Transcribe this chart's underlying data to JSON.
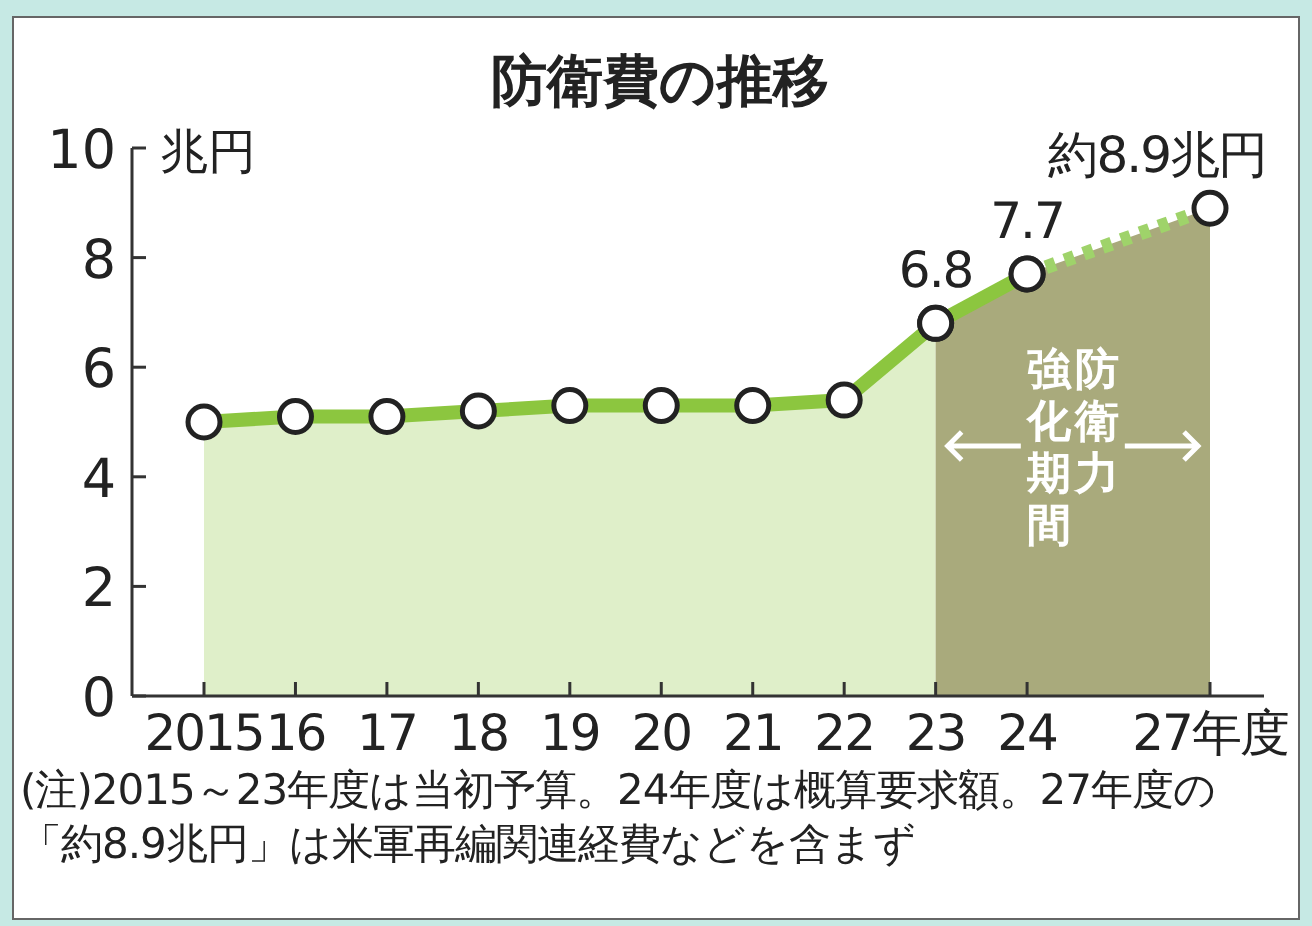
{
  "chart_data": {
    "type": "line",
    "title": "防衛費の推移",
    "ylabel": "兆円",
    "categories": [
      "2015",
      "16",
      "17",
      "18",
      "19",
      "20",
      "21",
      "22",
      "23",
      "24",
      null,
      "27年度"
    ],
    "ylim": [
      0,
      10
    ],
    "yticks": [
      0,
      2,
      4,
      6,
      8,
      10
    ],
    "grid": false,
    "marker": "circle",
    "series": [
      {
        "type": "area",
        "color": "#8cc63f",
        "line_style": "solid",
        "values": [
          5.0,
          5.1,
          5.1,
          5.2,
          5.3,
          5.3,
          5.3,
          5.4,
          6.8,
          null,
          null,
          null
        ],
        "value_labels": [
          null,
          null,
          null,
          null,
          null,
          null,
          null,
          null,
          "6.8",
          null,
          null,
          null
        ]
      },
      {
        "type": "line",
        "color": "#8cc63f",
        "line_style": "solid",
        "values": [
          null,
          null,
          null,
          null,
          null,
          null,
          null,
          null,
          6.8,
          7.7,
          null,
          null
        ],
        "value_labels": [
          null,
          null,
          null,
          null,
          null,
          null,
          null,
          null,
          null,
          "7.7",
          null,
          null
        ]
      },
      {
        "type": "line",
        "color": "#9fd36a",
        "line_style": "dotted",
        "values": [
          null,
          null,
          null,
          null,
          null,
          null,
          null,
          null,
          null,
          7.7,
          null,
          8.9
        ],
        "value_labels": [
          null,
          null,
          null,
          null,
          null,
          null,
          null,
          null,
          null,
          null,
          null,
          "約8.9兆円"
        ]
      }
    ],
    "bands": [
      {
        "axis": "x",
        "from": "23",
        "to": "27年度",
        "label": "防衛力強化期間",
        "color": "#a9aa7c"
      }
    ],
    "annotations": [
      "(注)2015～23年度は当初予算。24年度は概算要求額。27年度の「約8.9兆円」は米軍再編関連経費などを含まず"
    ]
  }
}
